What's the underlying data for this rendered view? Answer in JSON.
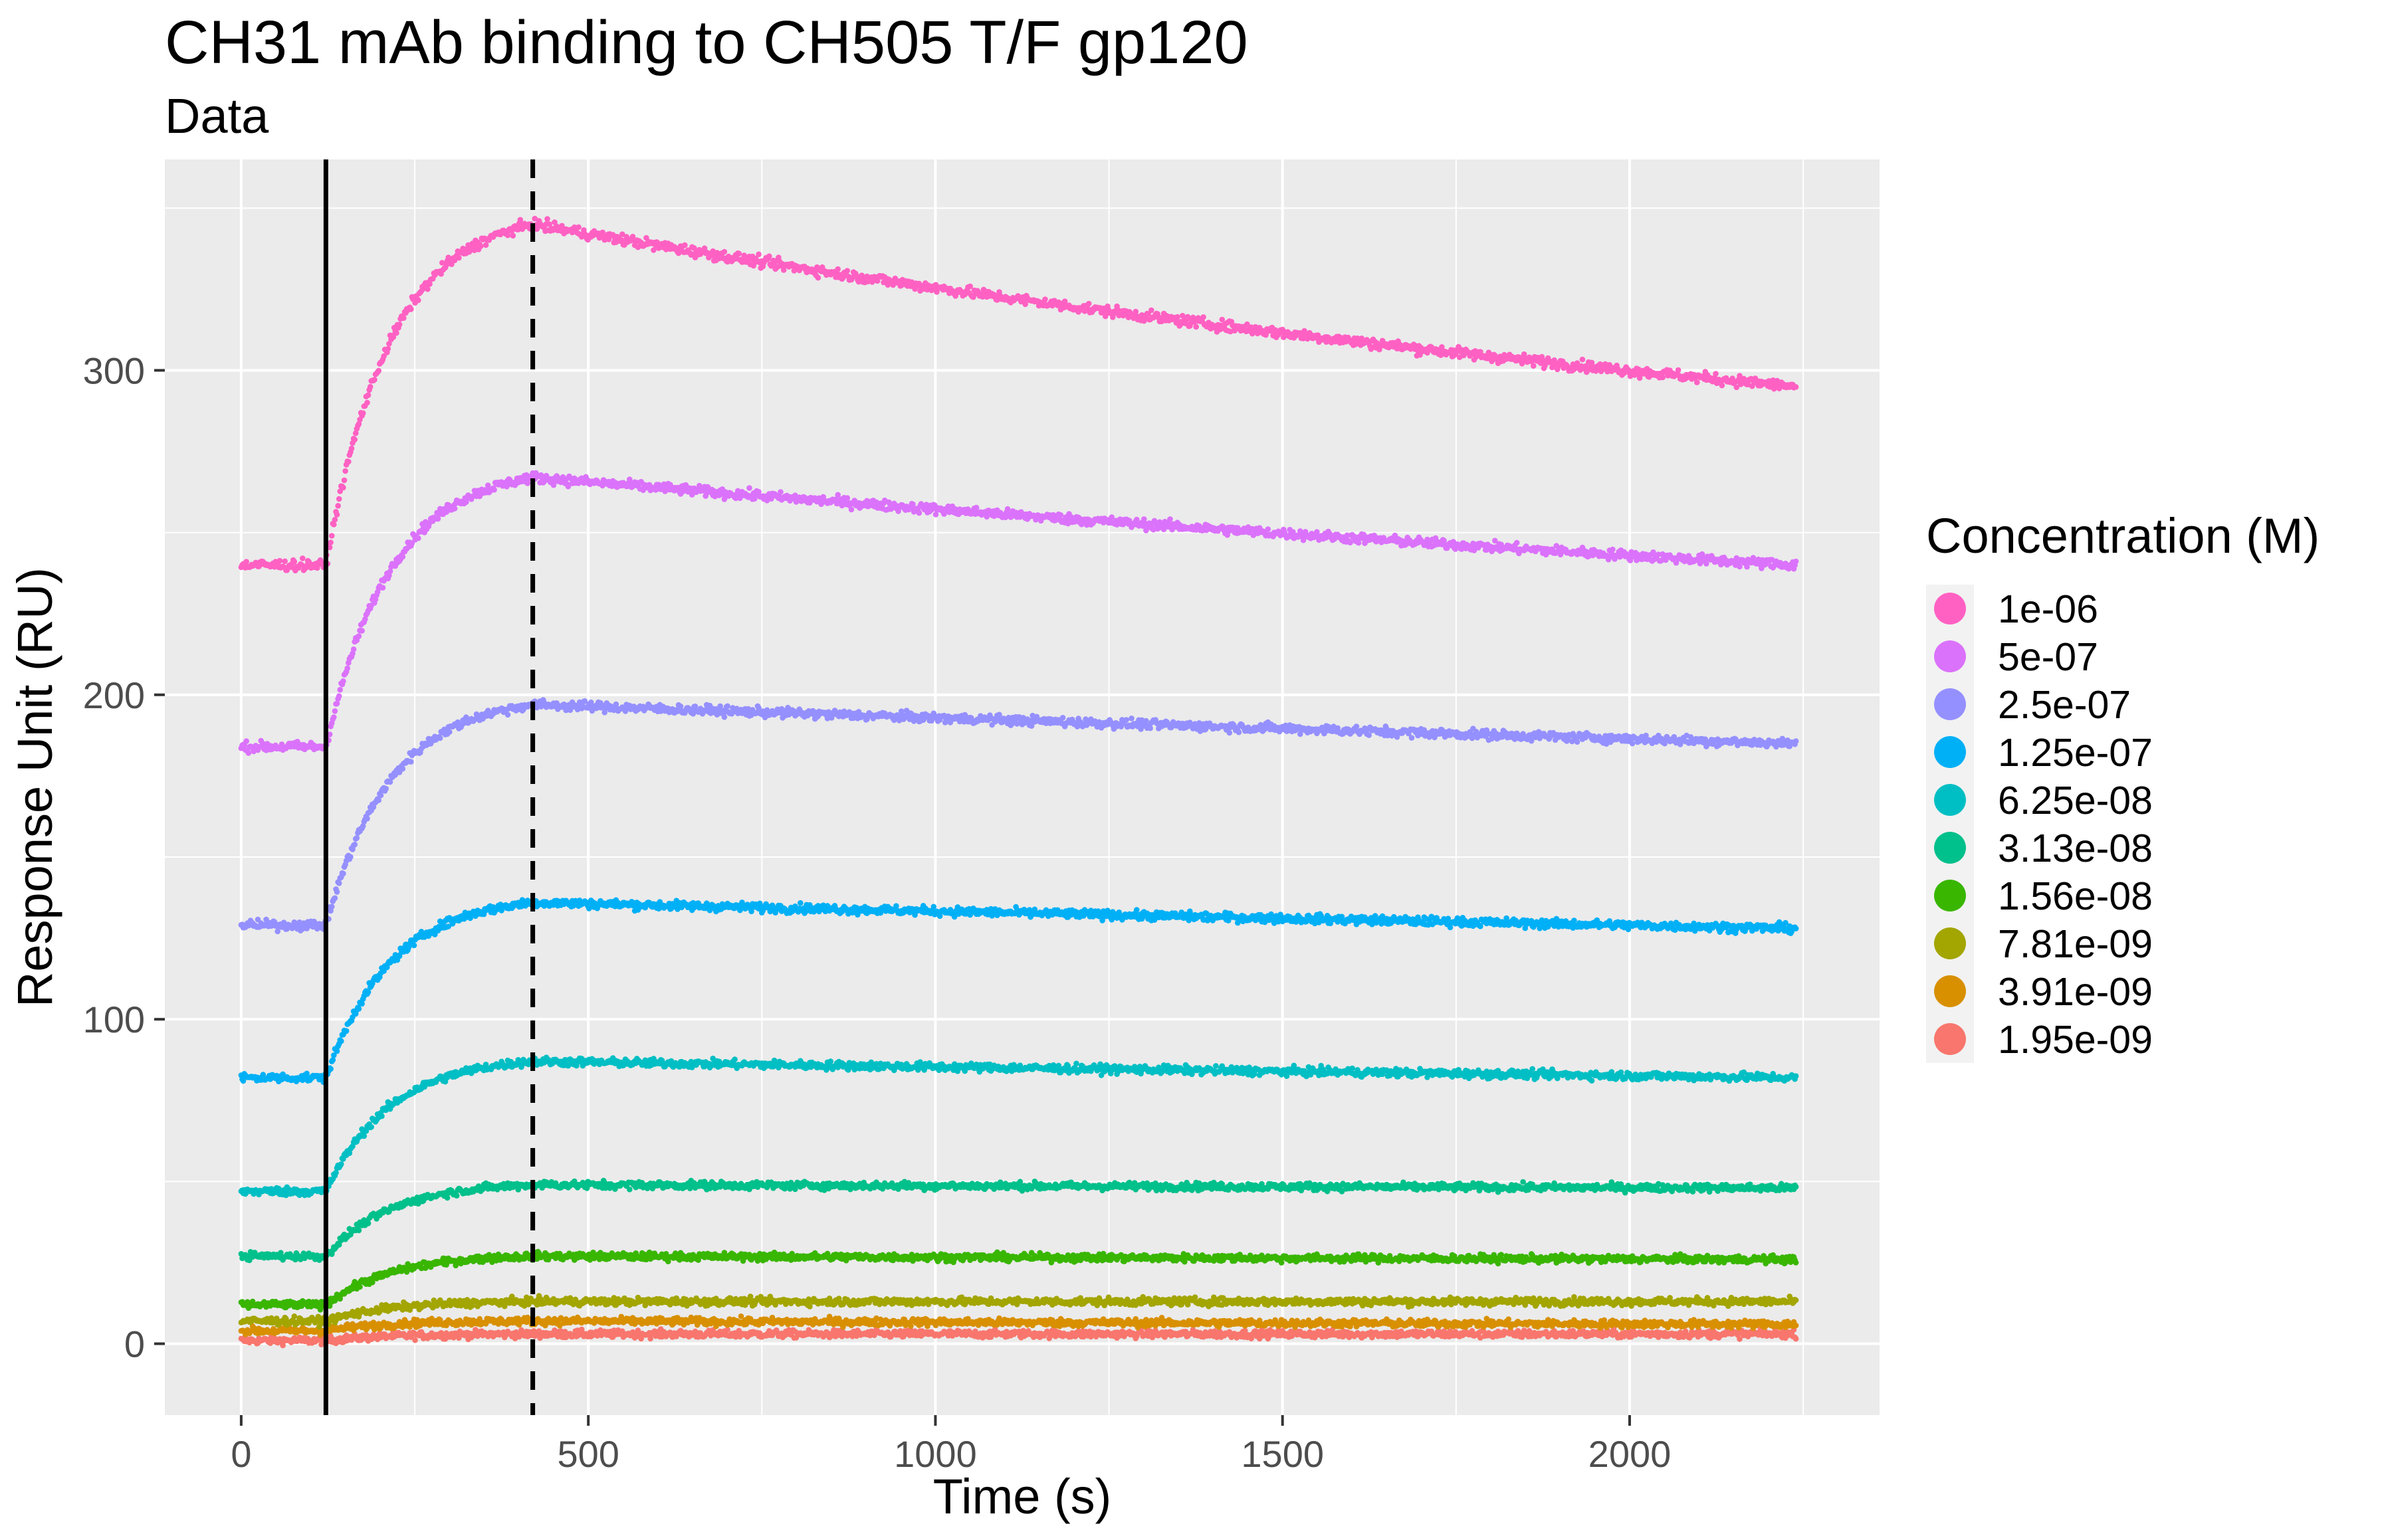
{
  "chart_data": {
    "type": "scatter",
    "title": "CH31 mAb binding to CH505 T/F gp120",
    "subtitle": "Data",
    "xlabel": "Time (s)",
    "ylabel": "Response Unit (RU)",
    "xlim": [
      -110,
      2360
    ],
    "ylim": [
      -22,
      365
    ],
    "x_ticks": [
      0,
      500,
      1000,
      1500,
      2000
    ],
    "y_ticks": [
      0,
      100,
      200,
      300
    ],
    "grid": true,
    "panel_background": "#EBEBEB",
    "vertical_lines": [
      {
        "x": 122,
        "style": "solid"
      },
      {
        "x": 420,
        "style": "dashed"
      }
    ],
    "legend": {
      "title": "Concentration (M)",
      "placement": "right"
    },
    "series": [
      {
        "name": "1e-06",
        "color": "#FF61C3",
        "baseline": 240,
        "peak": 345,
        "end": 295
      },
      {
        "name": "5e-07",
        "color": "#DB72FB",
        "baseline": 184,
        "peak": 267,
        "end": 240
      },
      {
        "name": "2.5e-07",
        "color": "#9590FF",
        "baseline": 129,
        "peak": 197,
        "end": 185
      },
      {
        "name": "1.25e-07",
        "color": "#00B0F6",
        "baseline": 82,
        "peak": 136,
        "end": 128
      },
      {
        "name": "6.25e-08",
        "color": "#00BFC4",
        "baseline": 47,
        "peak": 87,
        "end": 82
      },
      {
        "name": "3.13e-08",
        "color": "#00C08B",
        "baseline": 27,
        "peak": 49,
        "end": 48
      },
      {
        "name": "1.56e-08",
        "color": "#39B600",
        "baseline": 12,
        "peak": 27,
        "end": 26
      },
      {
        "name": "7.81e-09",
        "color": "#A3A500",
        "baseline": 7,
        "peak": 13,
        "end": 13
      },
      {
        "name": "3.91e-09",
        "color": "#D89000",
        "baseline": 4,
        "peak": 7,
        "end": 6
      },
      {
        "name": "1.95e-09",
        "color": "#F8766D",
        "baseline": 1,
        "peak": 3,
        "end": 3
      }
    ]
  }
}
